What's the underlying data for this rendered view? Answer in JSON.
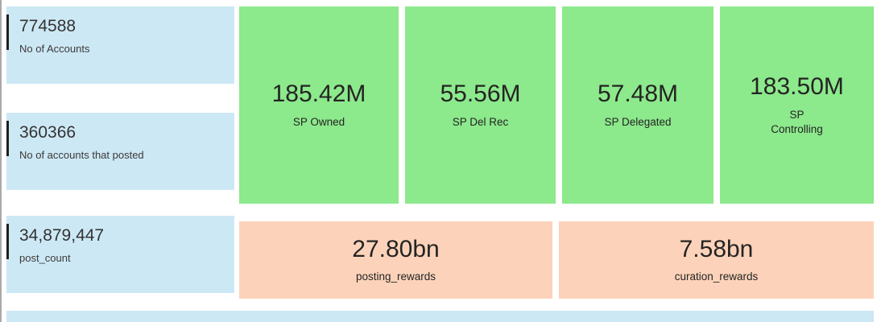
{
  "colors": {
    "blue_card": "#cde8f5",
    "green_card": "#8ce98c",
    "peach_card": "#fcd3ba",
    "accent_bar": "#1f1f1f",
    "text": "#252423",
    "edge_line": "#a9a9a9"
  },
  "cards": {
    "blue": [
      {
        "value": "774588",
        "label": "No of Accounts"
      },
      {
        "value": "360366",
        "label": "No of accounts that posted"
      },
      {
        "value": "34,879,447",
        "label": "post_count"
      }
    ],
    "green": [
      {
        "value": "185.42M",
        "label": "SP Owned"
      },
      {
        "value": "55.56M",
        "label": "SP Del Rec"
      },
      {
        "value": "57.48M",
        "label": "SP Delegated"
      },
      {
        "value": "183.50M",
        "label": "SP\nControlling"
      }
    ],
    "peach": [
      {
        "value": "27.80bn",
        "label": "posting_rewards"
      },
      {
        "value": "7.58bn",
        "label": "curation_rewards"
      }
    ]
  },
  "chart_data": {
    "type": "table",
    "title": "Steem account and rewards KPI dashboard",
    "metrics": [
      {
        "label": "No of Accounts",
        "value": 774588
      },
      {
        "label": "No of accounts that posted",
        "value": 360366
      },
      {
        "label": "post_count",
        "value": 34879447
      },
      {
        "label": "SP Owned",
        "value": "185.42M"
      },
      {
        "label": "SP Del Rec",
        "value": "55.56M"
      },
      {
        "label": "SP Delegated",
        "value": "57.48M"
      },
      {
        "label": "SP Controlling",
        "value": "183.50M"
      },
      {
        "label": "posting_rewards",
        "value": "27.80bn"
      },
      {
        "label": "curation_rewards",
        "value": "7.58bn"
      }
    ],
    "layout_hints": {
      "grid": false,
      "legend": "none",
      "style": "KPI cards: 3 blue count cards (left), 4 green SP cards (top), 2 peach reward cards (bottom)"
    }
  }
}
